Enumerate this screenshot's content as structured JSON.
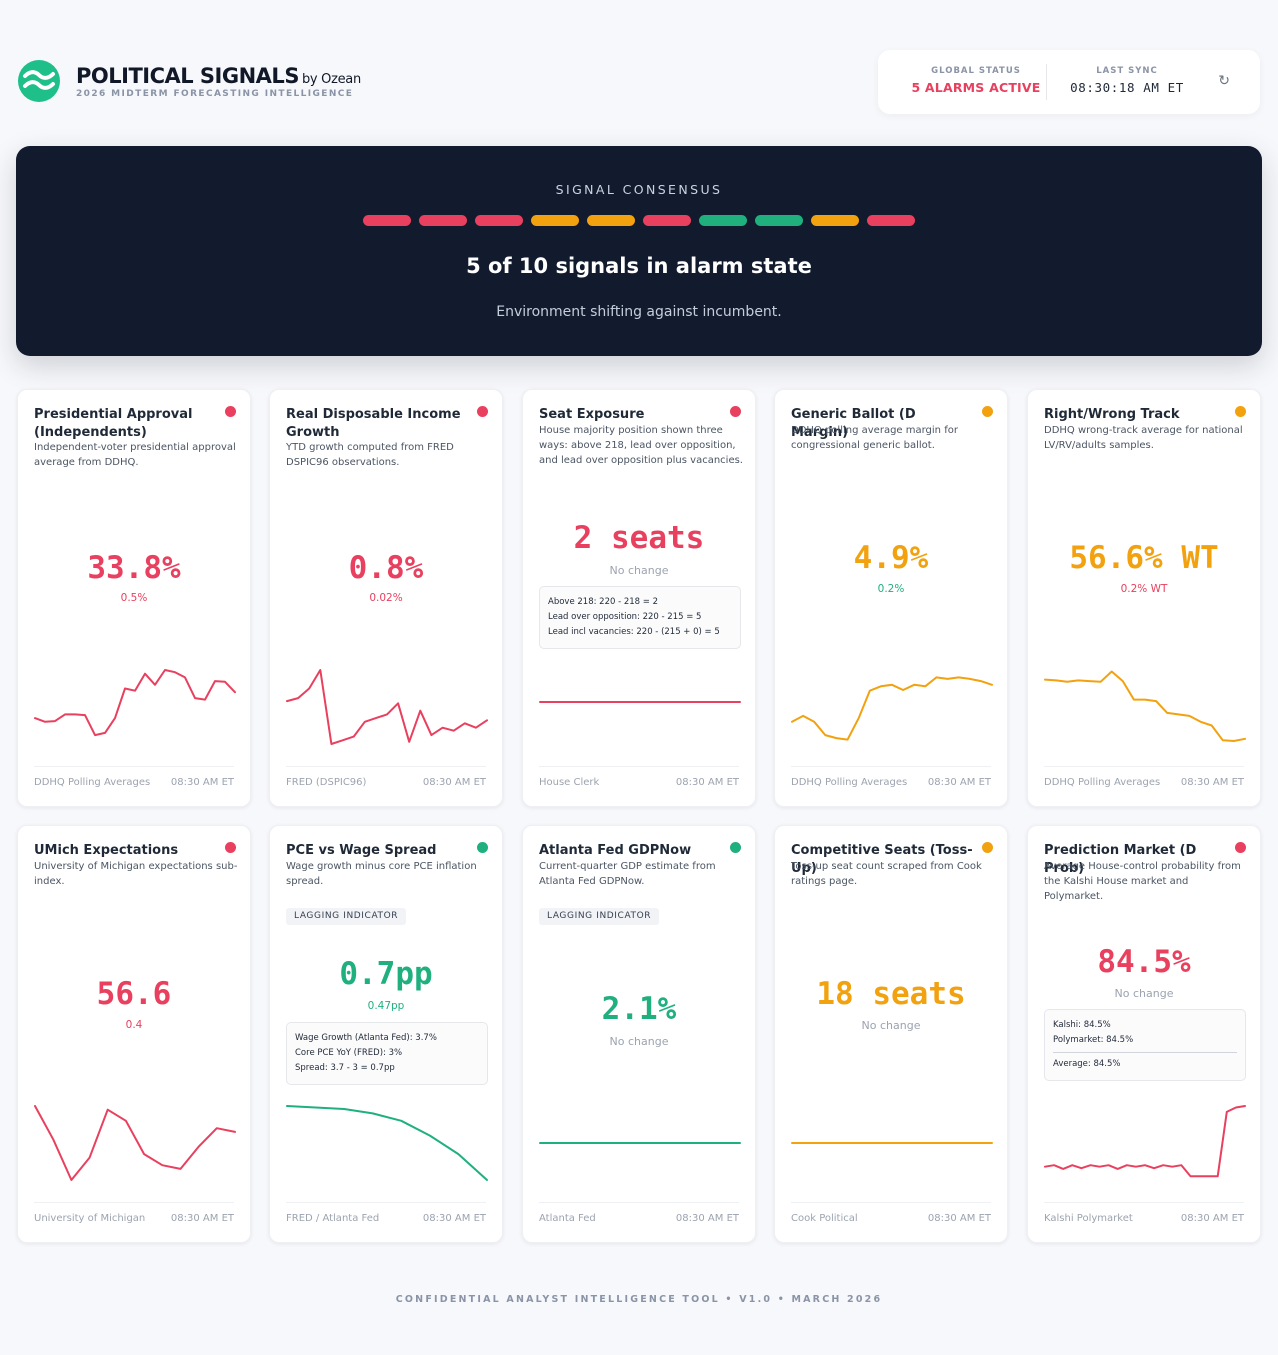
{
  "header": {
    "brand_title": "POLITICAL SIGNALS",
    "brand_by": "by Ozean",
    "brand_subtitle": "2026 MIDTERM FORECASTING INTELLIGENCE",
    "global_status_label": "GLOBAL STATUS",
    "global_status_value": "5 ALARMS ACTIVE",
    "last_sync_label": "LAST SYNC",
    "last_sync_value": "08:30:18 AM ET",
    "refresh_icon": "refresh-icon"
  },
  "consensus": {
    "label": "SIGNAL CONSENSUS",
    "bars": [
      "#e8405e",
      "#e8405e",
      "#e8405e",
      "#f2a10f",
      "#f2a10f",
      "#e8405e",
      "#1fb07e",
      "#1fb07e",
      "#f2a10f",
      "#e8405e"
    ],
    "headline": "5 of 10 signals in alarm state",
    "subtext": "Environment shifting against incumbent."
  },
  "colors": {
    "red": "#e8405e",
    "amber": "#f2a10f",
    "green": "#1fb07e"
  },
  "cards": [
    {
      "title": "Presidential Approval (Independents)",
      "status": "red",
      "description": "Independent-voter presidential approval average from DDHQ.",
      "value": "33.8%",
      "delta": "0.5%",
      "source": "DDHQ Polling Averages",
      "time": "08:30 AM ET",
      "series": [
        0.35,
        0.3,
        0.31,
        0.4,
        0.4,
        0.39,
        0.12,
        0.15,
        0.35,
        0.75,
        0.72,
        0.95,
        0.8,
        1.0,
        0.97,
        0.9,
        0.62,
        0.6,
        0.85,
        0.84,
        0.7
      ]
    },
    {
      "title": "Real Disposable Income Growth",
      "status": "red",
      "description": "YTD growth computed from FRED DSPIC96 observations.",
      "value": "0.8%",
      "delta": "0.02%",
      "source": "FRED (DSPIC96)",
      "time": "08:30 AM ET",
      "series": [
        0.58,
        0.62,
        0.75,
        1.0,
        0.0,
        0.05,
        0.1,
        0.3,
        0.35,
        0.4,
        0.55,
        0.03,
        0.45,
        0.12,
        0.22,
        0.18,
        0.28,
        0.22,
        0.32
      ]
    },
    {
      "title": "Seat Exposure",
      "status": "red",
      "description": "House majority position shown three ways: above 218, lead over opposition, and lead over opposition plus vacancies.",
      "value": "2 seats",
      "delta": "No change",
      "info": [
        "Above 218: 220 - 218 = 2",
        "Lead over opposition: 220 - 215 = 5",
        "Lead incl vacancies: 220 - (215 + 0) = 5"
      ],
      "source": "House Clerk",
      "time": "08:30 AM ET",
      "series": [
        0.5,
        0.5
      ]
    },
    {
      "title": "Generic Ballot (D Margin)",
      "status": "amber",
      "description": "DDHQ polling average margin for congressional generic ballot.",
      "value": "4.9%",
      "delta": "0.2%",
      "source": "DDHQ Polling Averages",
      "time": "08:30 AM ET",
      "series": [
        0.3,
        0.38,
        0.3,
        0.12,
        0.08,
        0.06,
        0.35,
        0.72,
        0.78,
        0.8,
        0.73,
        0.8,
        0.78,
        0.9,
        0.88,
        0.9,
        0.88,
        0.85,
        0.8
      ]
    },
    {
      "title": "Right/Wrong Track",
      "status": "amber",
      "description": "DDHQ wrong-track average for national LV/RV/adults samples.",
      "value": "56.6% WT",
      "delta": "0.2% WT",
      "source": "DDHQ Polling Averages",
      "time": "08:30 AM ET",
      "series": [
        0.87,
        0.86,
        0.84,
        0.86,
        0.85,
        0.84,
        0.98,
        0.85,
        0.6,
        0.6,
        0.58,
        0.42,
        0.4,
        0.38,
        0.3,
        0.25,
        0.05,
        0.04,
        0.07
      ]
    },
    {
      "title": "UMich Expectations",
      "status": "red",
      "description": "University of Michigan expectations sub-index.",
      "value": "56.6",
      "delta": "0.4",
      "source": "University of Michigan",
      "time": "08:30 AM ET",
      "series": [
        1.0,
        0.55,
        0.0,
        0.3,
        0.95,
        0.8,
        0.35,
        0.2,
        0.15,
        0.45,
        0.7,
        0.65
      ]
    },
    {
      "title": "PCE vs Wage Spread",
      "status": "green",
      "description": "Wage growth minus core PCE inflation spread.",
      "tag": "LAGGING INDICATOR",
      "value": "0.7pp",
      "delta": "0.47pp",
      "info": [
        "Wage Growth (Atlanta Fed): 3.7%",
        "Core PCE YoY (FRED): 3%",
        "Spread: 3.7 - 3 = 0.7pp"
      ],
      "source": "FRED / Atlanta Fed",
      "time": "08:30 AM ET",
      "series": [
        1.0,
        0.98,
        0.96,
        0.9,
        0.8,
        0.6,
        0.35,
        0.0
      ]
    },
    {
      "title": "Atlanta Fed GDPNow",
      "status": "green",
      "description": "Current-quarter GDP estimate from Atlanta Fed GDPNow.",
      "tag": "LAGGING INDICATOR",
      "value": "2.1%",
      "delta": "No change",
      "source": "Atlanta Fed",
      "time": "08:30 AM ET",
      "series": [
        0.5,
        0.5
      ]
    },
    {
      "title": "Competitive Seats (Toss-Up)",
      "status": "amber",
      "description": "Toss-up seat count scraped from Cook ratings page.",
      "value": "18 seats",
      "delta": "No change",
      "source": "Cook Political",
      "time": "08:30 AM ET",
      "series": [
        0.5,
        0.5
      ]
    },
    {
      "title": "Prediction Market (D Prob)",
      "status": "red",
      "description": "Average House-control probability from the Kalshi House market and Polymarket.",
      "value": "84.5%",
      "delta": "No change",
      "info": [
        "Kalshi: 84.5%",
        "Polymarket: 84.5%",
        "---",
        "Average: 84.5%"
      ],
      "source": "Kalshi  Polymarket",
      "time": "08:30 AM ET",
      "series": [
        0.18,
        0.2,
        0.15,
        0.2,
        0.16,
        0.2,
        0.18,
        0.2,
        0.15,
        0.2,
        0.18,
        0.2,
        0.16,
        0.2,
        0.18,
        0.2,
        0.05,
        0.05,
        0.05,
        0.05,
        0.92,
        0.98,
        1.0
      ]
    }
  ],
  "footer": "CONFIDENTIAL ANALYST INTELLIGENCE TOOL • V1.0 • MARCH 2026"
}
